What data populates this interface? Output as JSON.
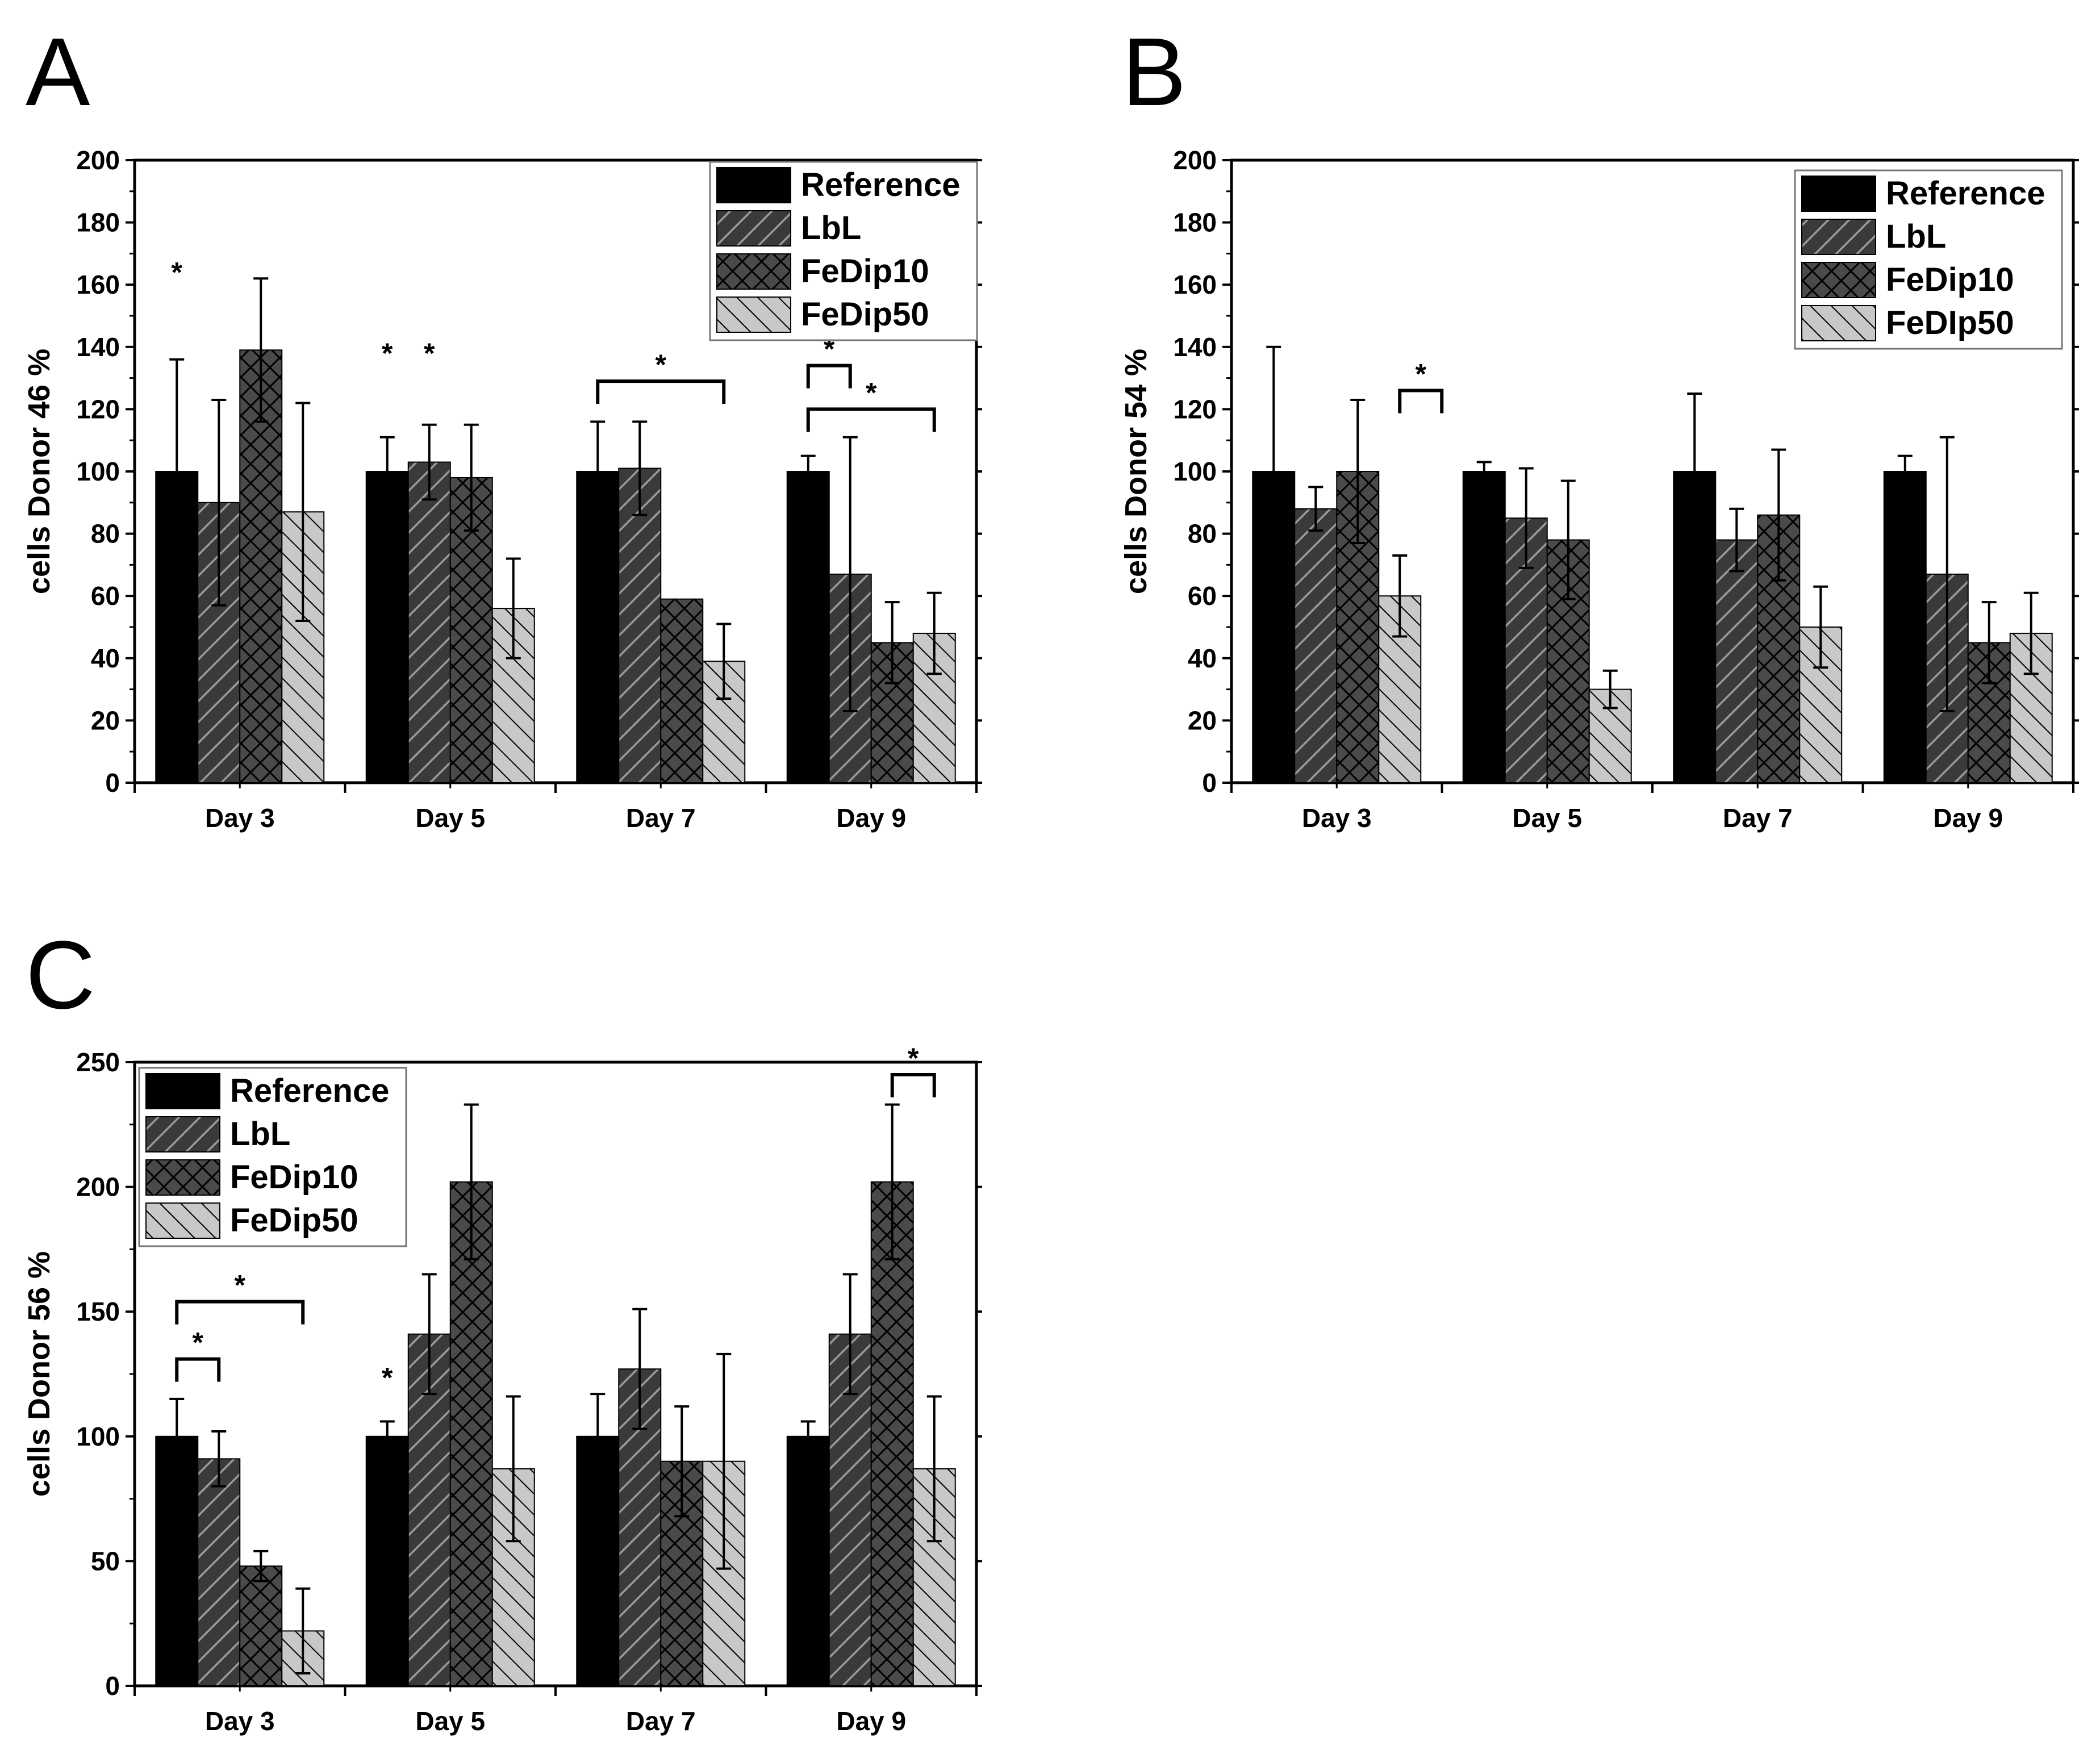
{
  "colors": {
    "Reference": "#000000",
    "LbL": "#3a3a3a",
    "FeDip10": "#4a4a4a",
    "FeDip50": "#c8c8c8",
    "axis": "#000000"
  },
  "chart_data": [
    {
      "panel": "A",
      "type": "bar",
      "ylabel": "cells Donor 46 %",
      "xlabel": "",
      "ylim": [
        0,
        200
      ],
      "yticks": [
        0,
        20,
        40,
        60,
        80,
        100,
        120,
        140,
        160,
        180,
        200
      ],
      "categories": [
        "Day 3",
        "Day 5",
        "Day 7",
        "Day 9"
      ],
      "legend_position": "top-right",
      "series": [
        {
          "name": "Reference",
          "pattern": "solid",
          "values": [
            100,
            100,
            100,
            100
          ],
          "errors": [
            36,
            11,
            16,
            5
          ]
        },
        {
          "name": "LbL",
          "pattern": "hatch",
          "values": [
            90,
            103,
            101,
            67
          ],
          "errors": [
            33,
            12,
            15,
            44
          ]
        },
        {
          "name": "FeDip10",
          "pattern": "cross",
          "values": [
            139,
            98,
            59,
            45
          ],
          "errors": [
            23,
            17,
            0,
            13
          ]
        },
        {
          "name": "FeDip50",
          "pattern": "back",
          "values": [
            87,
            56,
            39,
            48
          ],
          "errors": [
            35,
            16,
            12,
            13
          ]
        }
      ],
      "annotations": [
        {
          "label": "*",
          "kind": "star",
          "group": 0,
          "series": 0,
          "y": 166
        },
        {
          "label": "*",
          "kind": "star",
          "group": 1,
          "series": 0,
          "y": 140
        },
        {
          "label": "*",
          "kind": "star",
          "group": 1,
          "series": 1,
          "y": 140
        },
        {
          "label": "*",
          "kind": "bracket",
          "group": 2,
          "from": 0,
          "to": 3,
          "y": 129
        },
        {
          "label": "*",
          "kind": "bracket",
          "group": 3,
          "from": 0,
          "to": 1,
          "y": 134
        },
        {
          "label": "*",
          "kind": "bracket",
          "group": 3,
          "from": 0,
          "to": 3,
          "y": 120
        }
      ]
    },
    {
      "panel": "B",
      "type": "bar",
      "ylabel": "cells Donor 54 %",
      "xlabel": "",
      "ylim": [
        0,
        200
      ],
      "yticks": [
        0,
        20,
        40,
        60,
        80,
        100,
        120,
        140,
        160,
        180,
        200
      ],
      "categories": [
        "Day 3",
        "Day 5",
        "Day 7",
        "Day 9"
      ],
      "legend_position": "top-right",
      "series": [
        {
          "name": "Reference",
          "pattern": "solid",
          "values": [
            100,
            100,
            100,
            100
          ],
          "errors": [
            40,
            3,
            25,
            5
          ]
        },
        {
          "name": "LbL",
          "pattern": "hatch",
          "values": [
            88,
            85,
            78,
            67
          ],
          "errors": [
            7,
            16,
            10,
            44
          ]
        },
        {
          "name": "FeDip10",
          "pattern": "cross",
          "values": [
            100,
            78,
            86,
            45
          ],
          "errors": [
            23,
            19,
            21,
            13
          ]
        },
        {
          "name": "FeDIp50",
          "pattern": "back",
          "values": [
            60,
            30,
            50,
            48
          ],
          "errors": [
            13,
            6,
            13,
            13
          ]
        }
      ],
      "annotations": [
        {
          "label": "*",
          "kind": "bracket",
          "group": 0,
          "from": 3,
          "to": 4,
          "y": 126
        }
      ]
    },
    {
      "panel": "C",
      "type": "bar",
      "ylabel": "cells Donor 56 %",
      "xlabel": "",
      "ylim": [
        0,
        250
      ],
      "yticks": [
        0,
        50,
        100,
        150,
        200,
        250
      ],
      "categories": [
        "Day 3",
        "Day 5",
        "Day 7",
        "Day 9"
      ],
      "legend_position": "top-left",
      "series": [
        {
          "name": "Reference",
          "pattern": "solid",
          "values": [
            100,
            100,
            100,
            100
          ],
          "errors": [
            15,
            6,
            17,
            6
          ]
        },
        {
          "name": "LbL",
          "pattern": "hatch",
          "values": [
            91,
            141,
            127,
            141
          ],
          "errors": [
            11,
            24,
            24,
            24
          ]
        },
        {
          "name": "FeDip10",
          "pattern": "cross",
          "values": [
            48,
            202,
            90,
            202
          ],
          "errors": [
            6,
            31,
            22,
            31
          ]
        },
        {
          "name": "FeDip50",
          "pattern": "back",
          "values": [
            22,
            87,
            90,
            87
          ],
          "errors": [
            17,
            29,
            43,
            29
          ]
        }
      ],
      "annotations": [
        {
          "label": "*",
          "kind": "bracket",
          "group": 0,
          "from": 0,
          "to": 3,
          "y": 154
        },
        {
          "label": "*",
          "kind": "bracket",
          "group": 0,
          "from": 0,
          "to": 1,
          "y": 131
        },
        {
          "label": "*",
          "kind": "star",
          "group": 1,
          "series": 0,
          "y": 126
        },
        {
          "label": "*",
          "kind": "bracket",
          "group": 3,
          "from": 2,
          "to": 3,
          "y": 245
        }
      ]
    }
  ]
}
